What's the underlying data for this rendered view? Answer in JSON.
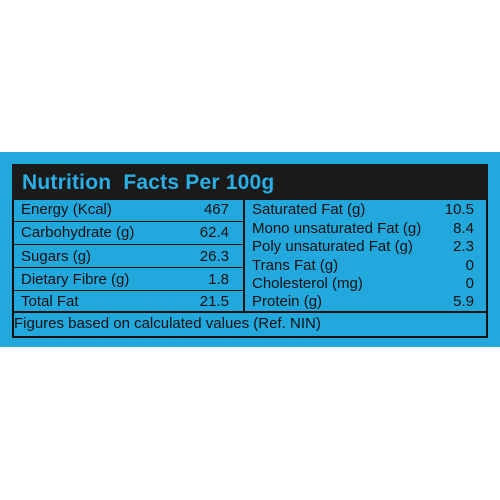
{
  "panel": {
    "background_color": "#22a8dc",
    "header_background": "#1a1a1a",
    "title_color": "#2ab0e6",
    "title": "Nutrition  Facts Per 100g"
  },
  "left_column": [
    {
      "name": "Energy (Kcal)",
      "value": "467"
    },
    {
      "name": "Carbohydrate (g)",
      "value": "62.4"
    },
    {
      "name": "Sugars (g)",
      "value": "26.3"
    },
    {
      "name": "Dietary Fibre (g)",
      "value": "1.8"
    },
    {
      "name": "Total Fat",
      "value": "21.5"
    }
  ],
  "right_column": [
    {
      "name": "Saturated Fat (g)",
      "value": "10.5"
    },
    {
      "name": "Mono unsaturated Fat (g)",
      "value": "8.4"
    },
    {
      "name": "Poly unsaturated Fat (g)",
      "value": "2.3"
    },
    {
      "name": "Trans Fat (g)",
      "value": "0"
    },
    {
      "name": "Cholesterol (mg)",
      "value": "0"
    },
    {
      "name": "Protein (g)",
      "value": "5.9"
    }
  ],
  "footnote": "Figures based on calculated values (Ref. NIN)"
}
